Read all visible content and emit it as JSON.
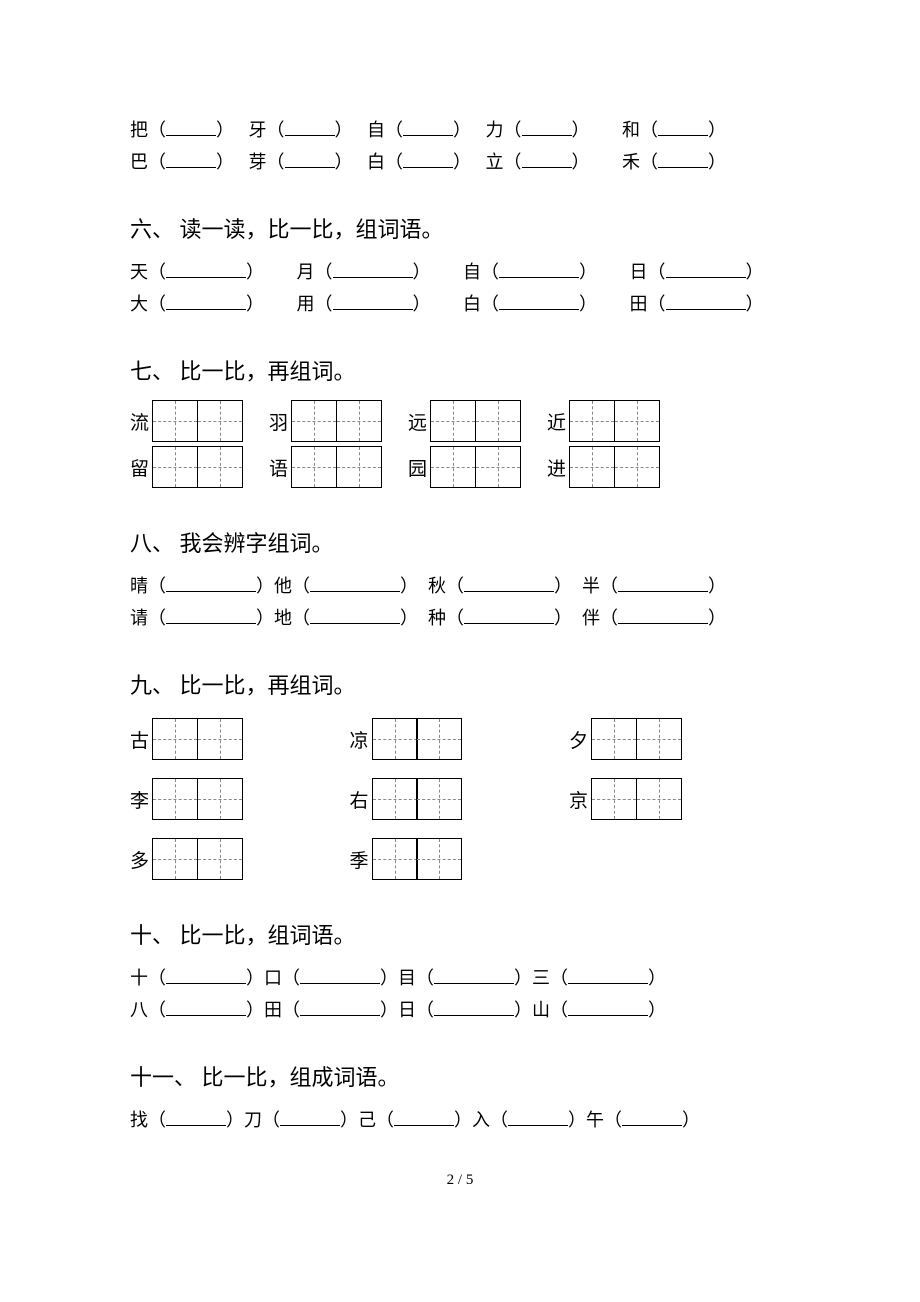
{
  "exercise5": {
    "row1": [
      {
        "char": "把"
      },
      {
        "char": "牙"
      },
      {
        "char": "自"
      },
      {
        "char": "力"
      },
      {
        "char": "和"
      }
    ],
    "row2": [
      {
        "char": "巴"
      },
      {
        "char": "芽"
      },
      {
        "char": "白"
      },
      {
        "char": "立"
      },
      {
        "char": "禾"
      }
    ]
  },
  "section6": {
    "title": "六、 读一读，比一比，组词语。",
    "pairs": [
      [
        "天",
        "月",
        "自",
        "日"
      ],
      [
        "大",
        "用",
        "白",
        "田"
      ]
    ]
  },
  "section7": {
    "title": "七、 比一比，再组词。",
    "pairs": [
      [
        "流",
        "羽",
        "远",
        "近"
      ],
      [
        "留",
        "语",
        "园",
        "进"
      ]
    ]
  },
  "section8": {
    "title": "八、 我会辨字组词。",
    "rows": [
      [
        "晴",
        "他",
        "秋",
        "半"
      ],
      [
        "请",
        "地",
        "种",
        "伴"
      ]
    ]
  },
  "section9": {
    "title": "九、 比一比，再组词。",
    "rows": [
      [
        "古",
        "凉",
        "夕"
      ],
      [
        "李",
        "右",
        "京"
      ],
      [
        "多",
        "季"
      ]
    ]
  },
  "section10": {
    "title": "十、 比一比，组词语。",
    "rows": [
      [
        "十",
        "口",
        "目",
        "三"
      ],
      [
        "八",
        "田",
        "日",
        "山"
      ]
    ]
  },
  "section11": {
    "title": "十一、 比一比，组成词语。",
    "chars": [
      "找",
      "刀",
      "己",
      "入",
      "午"
    ]
  },
  "footer": "2 / 5"
}
